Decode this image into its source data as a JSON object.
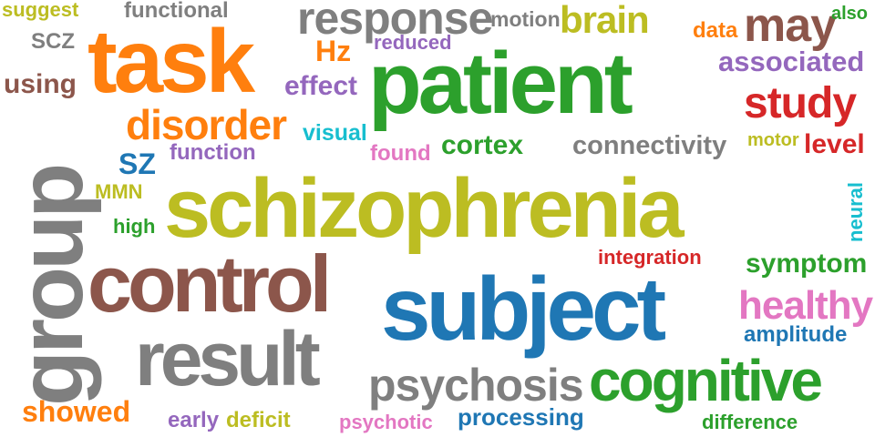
{
  "words": [
    {
      "text": "schizophrenia",
      "color": "#bcbd22"
    },
    {
      "text": "patient",
      "color": "#2ca02c"
    },
    {
      "text": "subject",
      "color": "#1f77b4"
    },
    {
      "text": "task",
      "color": "#ff7f0e"
    },
    {
      "text": "control",
      "color": "#8c564b"
    },
    {
      "text": "group",
      "color": "#7f7f7f"
    },
    {
      "text": "result",
      "color": "#7f7f7f"
    },
    {
      "text": "cognitive",
      "color": "#2ca02c"
    },
    {
      "text": "response",
      "color": "#7f7f7f"
    },
    {
      "text": "psychosis",
      "color": "#7f7f7f"
    },
    {
      "text": "disorder",
      "color": "#ff7f0e"
    },
    {
      "text": "may",
      "color": "#8c564b"
    },
    {
      "text": "brain",
      "color": "#bcbd22"
    },
    {
      "text": "study",
      "color": "#d62728"
    },
    {
      "text": "healthy",
      "color": "#e377c2"
    },
    {
      "text": "connectivity",
      "color": "#7f7f7f"
    },
    {
      "text": "associated",
      "color": "#9467bd"
    },
    {
      "text": "symptom",
      "color": "#2ca02c"
    },
    {
      "text": "cortex",
      "color": "#2ca02c"
    },
    {
      "text": "level",
      "color": "#d62728"
    },
    {
      "text": "showed",
      "color": "#ff7f0e"
    },
    {
      "text": "processing",
      "color": "#1f77b4"
    },
    {
      "text": "effect",
      "color": "#9467bd"
    },
    {
      "text": "using",
      "color": "#8c564b"
    },
    {
      "text": "functional",
      "color": "#7f7f7f"
    },
    {
      "text": "SZ",
      "color": "#1f77b4"
    },
    {
      "text": "function",
      "color": "#9467bd"
    },
    {
      "text": "visual",
      "color": "#17becf"
    },
    {
      "text": "found",
      "color": "#e377c2"
    },
    {
      "text": "Hz",
      "color": "#ff7f0e"
    },
    {
      "text": "suggest",
      "color": "#bcbd22"
    },
    {
      "text": "SCZ",
      "color": "#7f7f7f"
    },
    {
      "text": "reduced",
      "color": "#9467bd"
    },
    {
      "text": "motion",
      "color": "#7f7f7f"
    },
    {
      "text": "data",
      "color": "#ff7f0e"
    },
    {
      "text": "also",
      "color": "#2ca02c"
    },
    {
      "text": "motor",
      "color": "#bcbd22"
    },
    {
      "text": "neural",
      "color": "#17becf"
    },
    {
      "text": "MMN",
      "color": "#bcbd22"
    },
    {
      "text": "high",
      "color": "#2ca02c"
    },
    {
      "text": "integration",
      "color": "#d62728"
    },
    {
      "text": "amplitude",
      "color": "#1f77b4"
    },
    {
      "text": "early",
      "color": "#9467bd"
    },
    {
      "text": "deficit",
      "color": "#bcbd22"
    },
    {
      "text": "psychotic",
      "color": "#e377c2"
    },
    {
      "text": "difference",
      "color": "#2ca02c"
    }
  ]
}
